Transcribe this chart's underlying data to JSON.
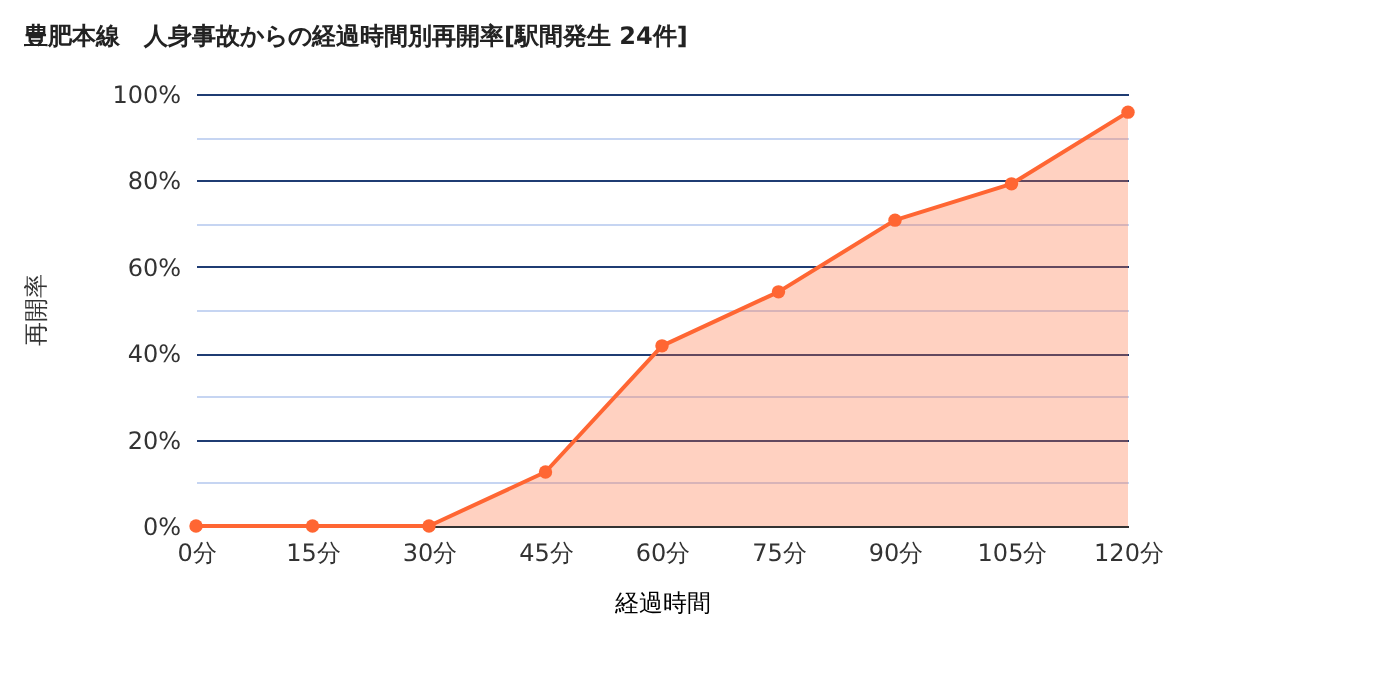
{
  "chart_data": {
    "type": "area",
    "title": "豊肥本線　人身事故からの経過時間別再開率[駅間発生 24件]",
    "xlabel": "経過時間",
    "ylabel": "再開率",
    "categories": [
      "0分",
      "15分",
      "30分",
      "45分",
      "60分",
      "75分",
      "90分",
      "105分",
      "120分"
    ],
    "series": [
      {
        "color": "#ff6633",
        "values": [
          0,
          0,
          0,
          12.5,
          41.7,
          54.2,
          70.8,
          79.2,
          95.8
        ]
      }
    ],
    "ylim": [
      0,
      100
    ],
    "yticks": [
      {
        "value": 0,
        "label": "0%"
      },
      {
        "value": 10,
        "label": null
      },
      {
        "value": 20,
        "label": "20%"
      },
      {
        "value": 30,
        "label": null
      },
      {
        "value": 40,
        "label": "40%"
      },
      {
        "value": 50,
        "label": null
      },
      {
        "value": 60,
        "label": "60%"
      },
      {
        "value": 70,
        "label": null
      },
      {
        "value": 80,
        "label": "80%"
      },
      {
        "value": 90,
        "label": null
      },
      {
        "value": 100,
        "label": "100%"
      }
    ],
    "grid": "y",
    "marker": "circle",
    "line_style": "solid"
  }
}
